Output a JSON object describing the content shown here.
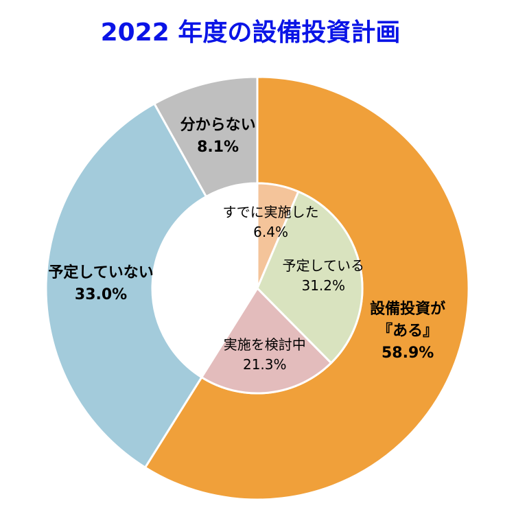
{
  "chart_data": {
    "type": "donut",
    "title": "2022 年度の設備投資計画",
    "outer": {
      "categories": [
        "設備投資が\n『ある』",
        "予定していない",
        "分からない"
      ],
      "values": [
        58.9,
        33.0,
        8.1
      ],
      "value_labels": [
        "58.9%",
        "33.0%",
        "8.1%"
      ],
      "colors": [
        "#f0a03a",
        "#a3cbdb",
        "#bfbfbf"
      ]
    },
    "inner": {
      "categories": [
        "すでに実施した",
        "予定している",
        "実施を検討中"
      ],
      "values": [
        6.4,
        31.2,
        21.3
      ],
      "value_labels": [
        "6.4%",
        "31.2%",
        "21.3%"
      ],
      "colors": [
        "#f4c49a",
        "#d9e3bf",
        "#e3bcbc"
      ]
    }
  }
}
